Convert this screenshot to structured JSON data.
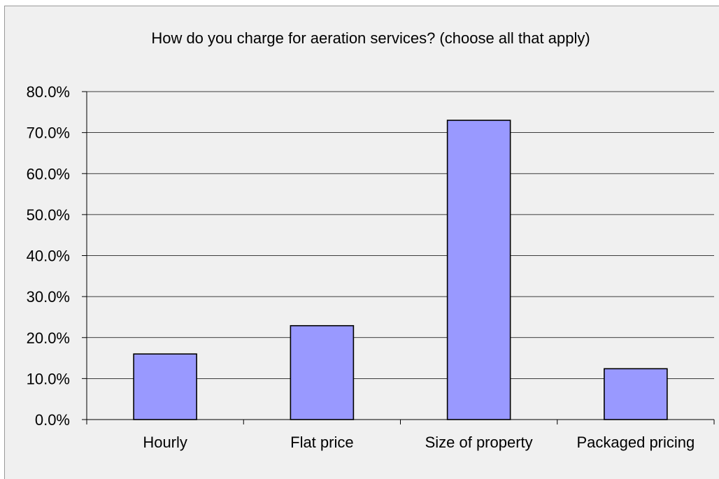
{
  "chart_data": {
    "type": "bar",
    "title": "How do you charge for aeration services? (choose all that apply)",
    "xlabel": "",
    "ylabel": "",
    "categories": [
      "Hourly",
      "Flat price",
      "Size of property",
      "Packaged pricing"
    ],
    "values": [
      16.0,
      22.9,
      73.0,
      12.4
    ],
    "ylim": [
      0,
      80
    ],
    "yticks": [
      0,
      10,
      20,
      30,
      40,
      50,
      60,
      70,
      80
    ],
    "ytick_labels": [
      "0.0%",
      "10.0%",
      "20.0%",
      "30.0%",
      "40.0%",
      "50.0%",
      "60.0%",
      "70.0%",
      "80.0%"
    ],
    "grid": true,
    "legend": "none",
    "colors": {
      "bar_fill": "#9999ff",
      "bar_stroke": "#000000",
      "plot_background": "#f0f0f0",
      "gridline": "#000000"
    }
  }
}
